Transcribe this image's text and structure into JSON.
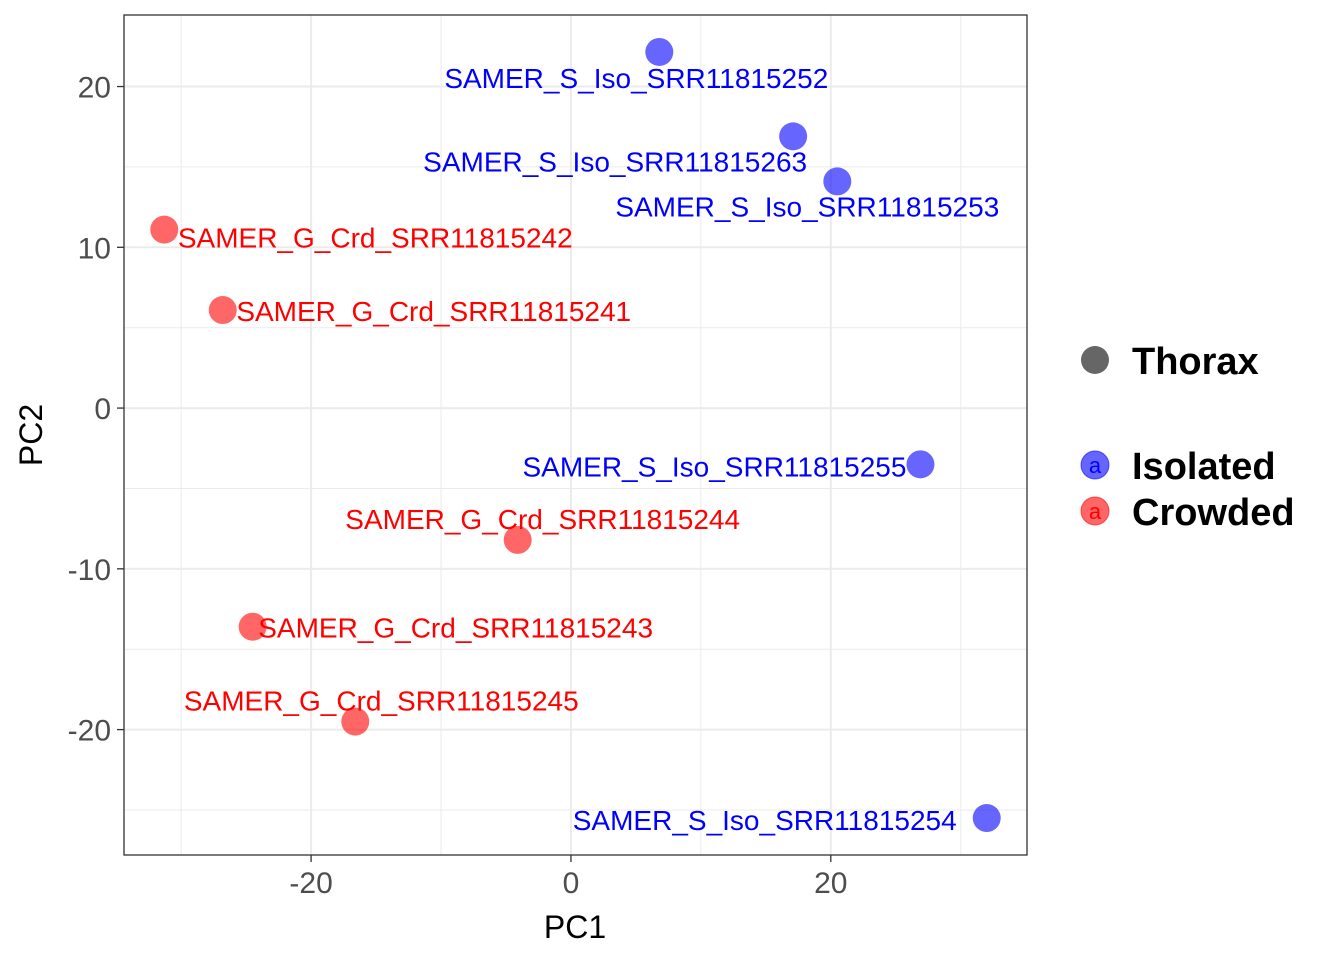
{
  "chart_data": {
    "type": "scatter",
    "xlabel": "PC1",
    "ylabel": "PC2",
    "xlim": [
      -34.4,
      35.1
    ],
    "ylim": [
      -27.8,
      24.45
    ],
    "x_ticks": [
      -20,
      0,
      20
    ],
    "y_ticks": [
      -20,
      -10,
      0,
      10,
      20
    ],
    "grid": true,
    "legend_position": "right",
    "legend": {
      "shape_title": "Thorax",
      "shape_color": "#666666",
      "groups": [
        {
          "name": "Isolated",
          "color": "#0000FF"
        },
        {
          "name": "Crowded",
          "color": "#FF0000"
        }
      ],
      "key_glyph": "a"
    },
    "points": [
      {
        "label": "SAMER_S_Iso_SRR11815252",
        "group": "Isolated",
        "x": 6.8,
        "y": 22.15
      },
      {
        "label": "SAMER_S_Iso_SRR11815263",
        "group": "Isolated",
        "x": 17.1,
        "y": 16.9
      },
      {
        "label": "SAMER_S_Iso_SRR11815253",
        "group": "Isolated",
        "x": 20.5,
        "y": 14.1
      },
      {
        "label": "SAMER_S_Iso_SRR11815255",
        "group": "Isolated",
        "x": 26.9,
        "y": -3.5
      },
      {
        "label": "SAMER_S_Iso_SRR11815254",
        "group": "Isolated",
        "x": 32.0,
        "y": -25.5
      },
      {
        "label": "SAMER_G_Crd_SRR11815242",
        "group": "Crowded",
        "x": -31.3,
        "y": 11.1
      },
      {
        "label": "SAMER_G_Crd_SRR11815241",
        "group": "Crowded",
        "x": -26.8,
        "y": 6.1
      },
      {
        "label": "SAMER_G_Crd_SRR11815244",
        "group": "Crowded",
        "x": -4.1,
        "y": -8.2
      },
      {
        "label": "SAMER_G_Crd_SRR11815243",
        "group": "Crowded",
        "x": -24.5,
        "y": -13.6
      },
      {
        "label": "SAMER_G_Crd_SRR11815245",
        "group": "Crowded",
        "x": -16.6,
        "y": -19.5
      }
    ]
  }
}
